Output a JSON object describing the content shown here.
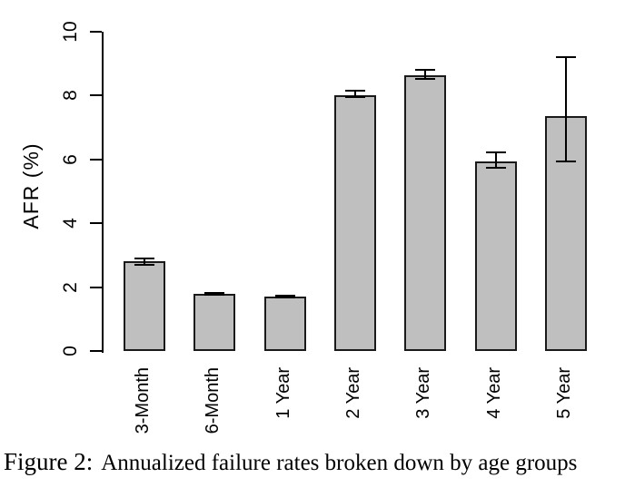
{
  "figure": {
    "caption_label": "Figure 2:",
    "caption_text": "Annualized failure rates broken down by age groups"
  },
  "chart_data": {
    "type": "bar",
    "title": "",
    "xlabel": "",
    "ylabel": "AFR (%)",
    "ylim": [
      0,
      10
    ],
    "yticks": [
      0,
      2,
      4,
      6,
      8,
      10
    ],
    "grid": false,
    "legend": null,
    "bar_fill_color": "#bfbfbf",
    "bar_edge_color": "#1a1a1a",
    "error_bar_color": "#000000",
    "categories": [
      "3-Month",
      "6-Month",
      "1 Year",
      "2 Year",
      "3 Year",
      "4 Year",
      "5 Year"
    ],
    "values": [
      2.8,
      1.8,
      1.7,
      8.0,
      8.65,
      5.95,
      7.35
    ],
    "error_low": [
      2.7,
      1.76,
      1.68,
      7.95,
      8.52,
      5.74,
      5.95
    ],
    "error_high": [
      2.9,
      1.83,
      1.73,
      8.15,
      8.81,
      6.22,
      9.2
    ]
  }
}
